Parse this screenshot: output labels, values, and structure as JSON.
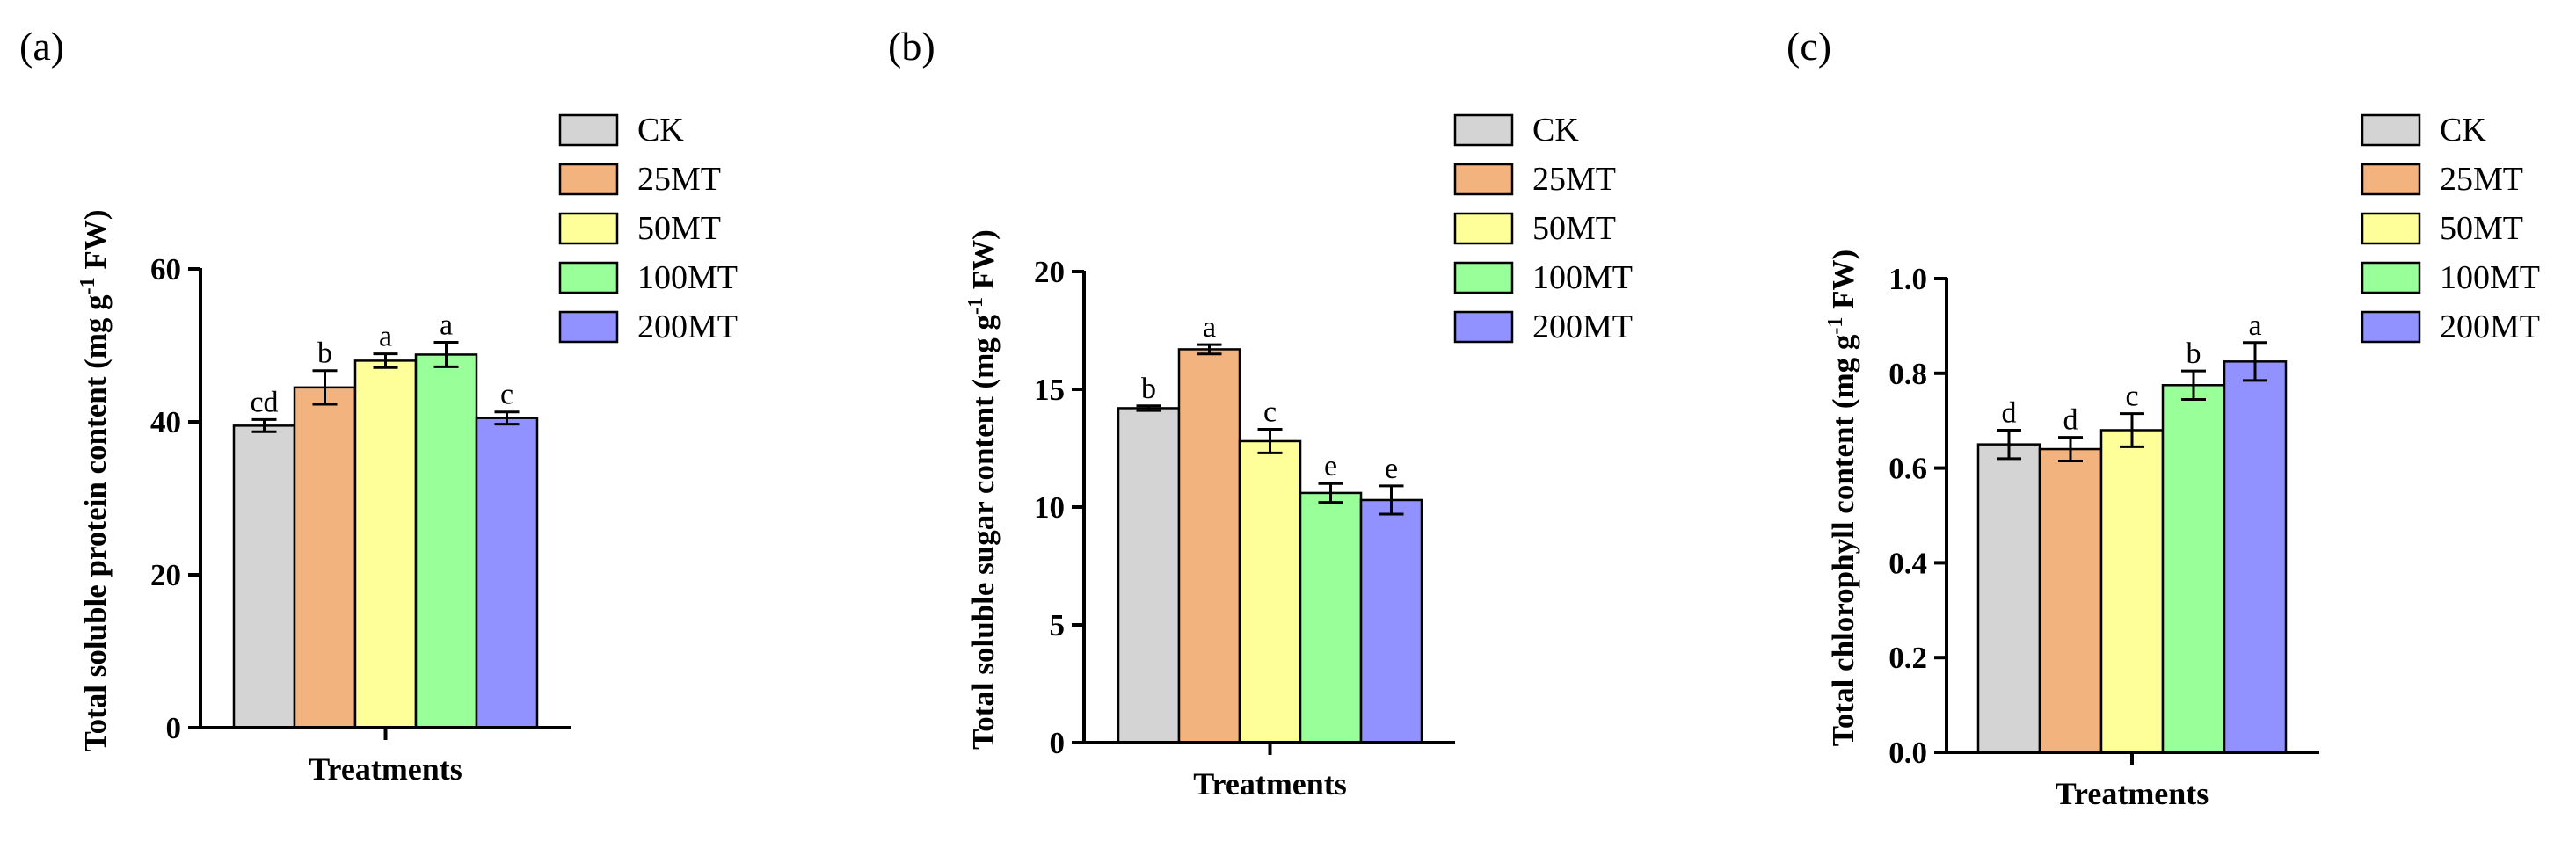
{
  "legend_labels": [
    "CK",
    "25MT",
    "50MT",
    "100MT",
    "200MT"
  ],
  "colors": {
    "CK": "#d4d4d4",
    "25MT": "#f2b37f",
    "50MT": "#ffff99",
    "100MT": "#99ff99",
    "200MT": "#9191ff"
  },
  "chart_data": [
    {
      "type": "bar",
      "panel_label": "(a)",
      "categories": [
        "CK",
        "25MT",
        "50MT",
        "100MT",
        "200MT"
      ],
      "values": [
        39.5,
        44.5,
        48.0,
        48.8,
        40.5
      ],
      "errors": [
        0.8,
        2.2,
        0.9,
        1.6,
        0.8
      ],
      "letters": [
        "cd",
        "b",
        "a",
        "a",
        "c"
      ],
      "xlabel": "Treatments",
      "ylabel": "Total soluble protein  content (mg g",
      "ylabel_sup": "-1",
      "ylabel_tail": " FW)",
      "ylim": [
        0,
        60
      ],
      "yticks": [
        0,
        20,
        40,
        60
      ],
      "ytick_labels": [
        "0",
        "20",
        "40",
        "60"
      ],
      "legend_position": "top-right"
    },
    {
      "type": "bar",
      "panel_label": "(b)",
      "categories": [
        "CK",
        "25MT",
        "50MT",
        "100MT",
        "200MT"
      ],
      "values": [
        14.2,
        16.7,
        12.8,
        10.6,
        10.3
      ],
      "errors": [
        0.1,
        0.2,
        0.5,
        0.4,
        0.6
      ],
      "letters": [
        "b",
        "a",
        "c",
        "e",
        "e"
      ],
      "xlabel": "Treatments",
      "ylabel": "Total soluble sugar content (mg g",
      "ylabel_sup": "-1",
      "ylabel_tail": " FW)",
      "ylim": [
        0,
        20
      ],
      "yticks": [
        0,
        5,
        10,
        15,
        20
      ],
      "ytick_labels": [
        "0",
        "5",
        "10",
        "15",
        "20"
      ],
      "legend_position": "top-right"
    },
    {
      "type": "bar",
      "panel_label": "(c)",
      "categories": [
        "CK",
        "25MT",
        "50MT",
        "100MT",
        "200MT"
      ],
      "values": [
        0.65,
        0.64,
        0.68,
        0.775,
        0.825
      ],
      "errors": [
        0.03,
        0.025,
        0.035,
        0.03,
        0.04
      ],
      "letters": [
        "d",
        "d",
        "c",
        "b",
        "a"
      ],
      "xlabel": "Treatments",
      "ylabel": "Total chlorophyll content (mg g",
      "ylabel_sup": "-1",
      "ylabel_tail": " FW)",
      "ylim": [
        0,
        1.0
      ],
      "yticks": [
        0,
        0.2,
        0.4,
        0.6,
        0.8,
        1.0
      ],
      "ytick_labels": [
        "0.0",
        "0.2",
        "0.4",
        "0.6",
        "0.8",
        "1.0"
      ],
      "legend_position": "top-right"
    }
  ]
}
